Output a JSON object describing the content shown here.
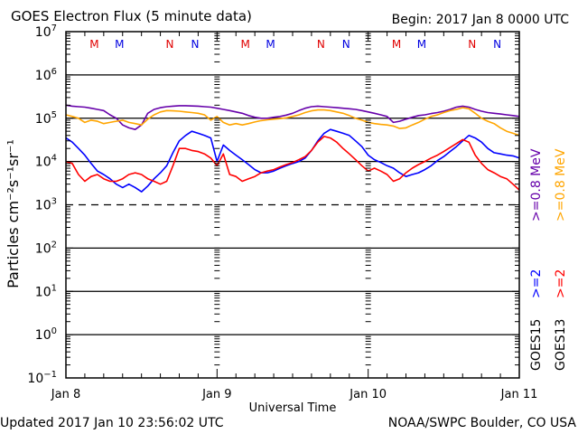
{
  "header": {
    "title": "GOES Electron Flux (5 minute data)",
    "begin": "Begin: 2017 Jan 8 0000 UTC"
  },
  "footer": {
    "updated": "Updated 2017 Jan 10 23:56:02 UTC",
    "credit": "NOAA/SWPC Boulder, CO USA"
  },
  "chart_data": {
    "type": "line",
    "title": "GOES Electron Flux (5 minute data)",
    "xlabel": "Universal Time",
    "ylabel": "Particles cm⁻²s⁻¹sr⁻¹",
    "yscale": "log",
    "ylim": [
      0.1,
      10000000
    ],
    "xlim": [
      0,
      72
    ],
    "x_unit": "hours since 2017 Jan 8 0000 UTC",
    "xticks": [
      {
        "x": 0,
        "label": "Jan 8"
      },
      {
        "x": 24,
        "label": "Jan 9"
      },
      {
        "x": 48,
        "label": "Jan 10"
      },
      {
        "x": 72,
        "label": "Jan 11"
      }
    ],
    "yticks": [
      {
        "exp": 7,
        "label": "10",
        "sup": "7"
      },
      {
        "exp": 6,
        "label": "10",
        "sup": "6"
      },
      {
        "exp": 5,
        "label": "10",
        "sup": "5"
      },
      {
        "exp": 4,
        "label": "10",
        "sup": "4"
      },
      {
        "exp": 3,
        "label": "10",
        "sup": "3"
      },
      {
        "exp": 2,
        "label": "10",
        "sup": "2"
      },
      {
        "exp": 1,
        "label": "10",
        "sup": "1"
      },
      {
        "exp": 0,
        "label": "10",
        "sup": "0"
      },
      {
        "exp": -1,
        "label": "10",
        "sup": "−1"
      }
    ],
    "grid_lines": [
      6,
      5,
      4,
      2,
      1,
      0
    ],
    "threshold_line": {
      "exp": 3,
      "style": "dashed"
    },
    "markers": [
      {
        "x": 4.5,
        "label": "M",
        "color": "#e00000"
      },
      {
        "x": 8.5,
        "label": "M",
        "color": "#0000e0"
      },
      {
        "x": 16.5,
        "label": "N",
        "color": "#e00000"
      },
      {
        "x": 20.5,
        "label": "N",
        "color": "#0000e0"
      },
      {
        "x": 28.5,
        "label": "M",
        "color": "#e00000"
      },
      {
        "x": 32.5,
        "label": "M",
        "color": "#0000e0"
      },
      {
        "x": 40.5,
        "label": "N",
        "color": "#e00000"
      },
      {
        "x": 44.5,
        "label": "N",
        "color": "#0000e0"
      },
      {
        "x": 52.5,
        "label": "M",
        "color": "#e00000"
      },
      {
        "x": 56.5,
        "label": "M",
        "color": "#0000e0"
      },
      {
        "x": 64.5,
        "label": "N",
        "color": "#e00000"
      },
      {
        "x": 68.5,
        "label": "N",
        "color": "#0000e0"
      }
    ],
    "legend": {
      "placement": "right-vertical",
      "entries": [
        {
          "text": ">=0.8 MeV",
          "color": "#6600aa",
          "column": 1
        },
        {
          "text": ">=2",
          "color": "#0000ff",
          "column": 1
        },
        {
          "text": "GOES15",
          "color": "#000000",
          "column": 1
        },
        {
          "text": ">=0.8 MeV",
          "color": "#ffa500",
          "column": 2
        },
        {
          "text": ">=2",
          "color": "#ff0000",
          "column": 2
        },
        {
          "text": "GOES13",
          "color": "#000000",
          "column": 2
        }
      ]
    },
    "x": [
      0,
      1,
      2,
      3,
      4,
      5,
      6,
      7,
      8,
      9,
      10,
      11,
      12,
      13,
      14,
      15,
      16,
      17,
      18,
      19,
      20,
      21,
      22,
      23,
      24,
      25,
      26,
      27,
      28,
      29,
      30,
      31,
      32,
      33,
      34,
      35,
      36,
      37,
      38,
      39,
      40,
      41,
      42,
      43,
      44,
      45,
      46,
      47,
      48,
      49,
      50,
      51,
      52,
      53,
      54,
      55,
      56,
      57,
      58,
      59,
      60,
      61,
      62,
      63,
      64,
      65,
      66,
      67,
      68,
      69,
      70,
      71,
      72
    ],
    "series": [
      {
        "name": "GOES15 >=0.8 MeV",
        "color": "#6600aa",
        "values": [
          200000,
          190000,
          185000,
          180000,
          170000,
          160000,
          150000,
          120000,
          100000,
          70000,
          60000,
          55000,
          70000,
          130000,
          160000,
          175000,
          185000,
          190000,
          195000,
          195000,
          192000,
          190000,
          185000,
          180000,
          170000,
          160000,
          150000,
          140000,
          130000,
          115000,
          105000,
          100000,
          100000,
          105000,
          110000,
          118000,
          130000,
          150000,
          170000,
          185000,
          190000,
          185000,
          180000,
          175000,
          170000,
          165000,
          160000,
          150000,
          140000,
          130000,
          120000,
          110000,
          80000,
          85000,
          95000,
          105000,
          115000,
          120000,
          128000,
          135000,
          145000,
          160000,
          180000,
          190000,
          180000,
          160000,
          145000,
          135000,
          130000,
          125000,
          120000,
          115000,
          110000
        ]
      },
      {
        "name": "GOES13 >=0.8 MeV",
        "color": "#ffa500",
        "values": [
          120000,
          110000,
          100000,
          80000,
          90000,
          85000,
          75000,
          80000,
          85000,
          90000,
          80000,
          75000,
          70000,
          95000,
          120000,
          140000,
          150000,
          148000,
          145000,
          140000,
          135000,
          130000,
          120000,
          90000,
          110000,
          80000,
          70000,
          75000,
          70000,
          75000,
          82000,
          88000,
          92000,
          95000,
          98000,
          102000,
          110000,
          120000,
          135000,
          148000,
          155000,
          155000,
          150000,
          140000,
          130000,
          115000,
          100000,
          90000,
          80000,
          75000,
          72000,
          70000,
          66000,
          58000,
          60000,
          70000,
          80000,
          95000,
          110000,
          120000,
          135000,
          150000,
          160000,
          175000,
          165000,
          130000,
          100000,
          85000,
          75000,
          60000,
          50000,
          45000,
          40000
        ]
      },
      {
        "name": "GOES15 >=2 MeV",
        "color": "#0000ff",
        "values": [
          35000,
          28000,
          20000,
          14000,
          9000,
          6000,
          5000,
          4000,
          3000,
          2500,
          3000,
          2500,
          2000,
          2700,
          4000,
          5500,
          8000,
          16000,
          30000,
          40000,
          50000,
          45000,
          40000,
          35000,
          10000,
          24000,
          18000,
          14000,
          11000,
          8500,
          6500,
          5500,
          5500,
          6000,
          7000,
          8000,
          9000,
          10000,
          12000,
          18000,
          30000,
          45000,
          55000,
          50000,
          45000,
          40000,
          30000,
          22000,
          14000,
          11000,
          9500,
          8000,
          7000,
          5500,
          4500,
          5000,
          5500,
          6500,
          8000,
          10500,
          13000,
          17000,
          22000,
          30000,
          40000,
          35000,
          28000,
          20000,
          16000,
          15000,
          14000,
          13500,
          12000
        ]
      },
      {
        "name": "GOES13 >=2 MeV",
        "color": "#ff0000",
        "values": [
          10000,
          9000,
          5000,
          3500,
          4500,
          5000,
          4000,
          3500,
          3500,
          4000,
          5000,
          5500,
          5000,
          4000,
          3500,
          3000,
          3500,
          8000,
          20000,
          20000,
          18000,
          17000,
          15000,
          12000,
          8000,
          15000,
          5000,
          4500,
          3500,
          4000,
          4500,
          5500,
          6000,
          6500,
          7500,
          8500,
          9500,
          11000,
          13000,
          18000,
          28000,
          38000,
          35000,
          28000,
          20000,
          15000,
          11000,
          8000,
          6000,
          7000,
          6000,
          5000,
          3500,
          4000,
          5500,
          7000,
          8500,
          10000,
          12000,
          14000,
          17000,
          21000,
          26000,
          32000,
          28000,
          14000,
          9000,
          6500,
          5500,
          4500,
          4000,
          3000,
          2200
        ]
      }
    ]
  }
}
